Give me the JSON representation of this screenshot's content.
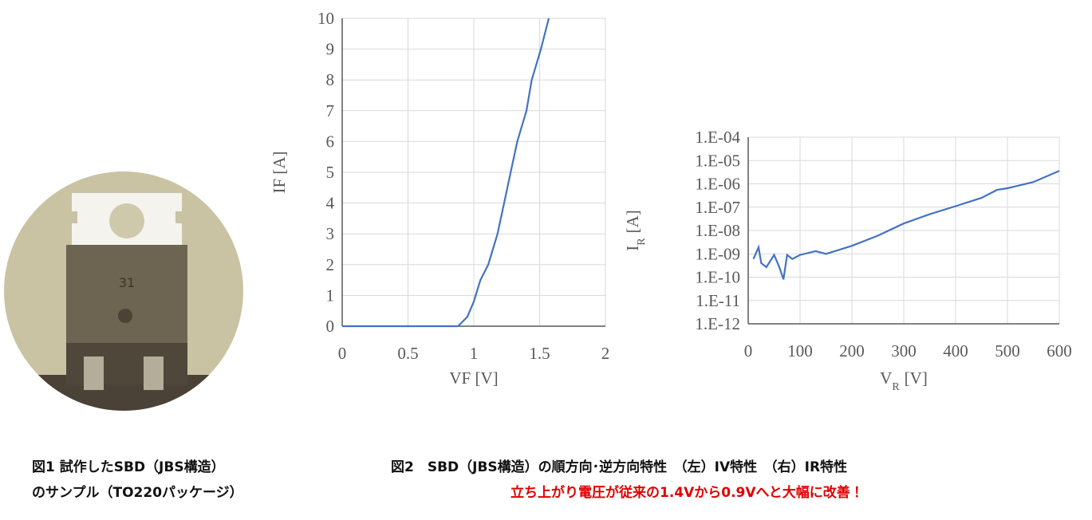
{
  "photo": {
    "label": "31"
  },
  "captions": {
    "fig1": [
      "図1 試作したSBD（JBS構造）",
      "のサンプル（TO220パッケージ）"
    ],
    "fig2": "図2　SBD（JBS構造）の順方向･逆方向特性　（左）IV特性　（右）IR特性",
    "highlight": "立ち上がり電圧が従来の1.4Vから0.9Vへと大幅に改善！"
  },
  "chart_data": [
    {
      "type": "line",
      "xlabel": "VF [V]",
      "ylabel": "IF [A]",
      "x": [
        0,
        0.5,
        0.88,
        0.95,
        1.0,
        1.05,
        1.11,
        1.18,
        1.23,
        1.28,
        1.33,
        1.4,
        1.44,
        1.51,
        1.57
      ],
      "values": [
        0,
        0,
        0,
        0.3,
        0.8,
        1.5,
        2,
        3,
        4,
        5,
        6,
        7,
        8,
        9,
        10
      ],
      "color": "#4472c4",
      "grid": true,
      "xlim": [
        0,
        2
      ],
      "xticks": [
        0,
        0.5,
        1,
        1.5,
        2
      ],
      "ylim": [
        0,
        10
      ],
      "yticks": [
        0,
        1,
        2,
        3,
        4,
        5,
        6,
        7,
        8,
        9,
        10
      ]
    },
    {
      "type": "line",
      "xlabel": {
        "main": "V",
        "sub": "R",
        "unit": "[V]"
      },
      "ylabel": {
        "main": "I",
        "sub": "R",
        "unit": "[A]"
      },
      "yscale": "log",
      "x": [
        10,
        20,
        25,
        35,
        50,
        60,
        68,
        75,
        85,
        100,
        130,
        150,
        180,
        200,
        250,
        300,
        350,
        400,
        450,
        480,
        500,
        550,
        600
      ],
      "values": [
        6e-10,
        1.9e-09,
        4e-10,
        2.7e-10,
        9e-10,
        2.7e-10,
        8e-11,
        9e-10,
        6e-10,
        9e-10,
        1.3e-09,
        1e-09,
        1.6e-09,
        2.2e-09,
        6e-09,
        2e-08,
        5e-08,
        1.1e-07,
        2.5e-07,
        5.5e-07,
        6.5e-07,
        1.2e-06,
        3.6e-06
      ],
      "color": "#4472c4",
      "grid": true,
      "xlim": [
        0,
        600
      ],
      "xticks": [
        0,
        100,
        200,
        300,
        400,
        500,
        600
      ],
      "ylim": [
        1e-12,
        0.0001
      ],
      "yticks": [
        {
          "value": 1e-12,
          "label": "1.E-12"
        },
        {
          "value": 1e-11,
          "label": "1.E-11"
        },
        {
          "value": 1e-10,
          "label": "1.E-10"
        },
        {
          "value": 1e-09,
          "label": "1.E-09"
        },
        {
          "value": 1e-08,
          "label": "1.E-08"
        },
        {
          "value": 1e-07,
          "label": "1.E-07"
        },
        {
          "value": 1e-06,
          "label": "1.E-06"
        },
        {
          "value": 1e-05,
          "label": "1.E-05"
        },
        {
          "value": 0.0001,
          "label": "1.E-04"
        }
      ]
    }
  ]
}
